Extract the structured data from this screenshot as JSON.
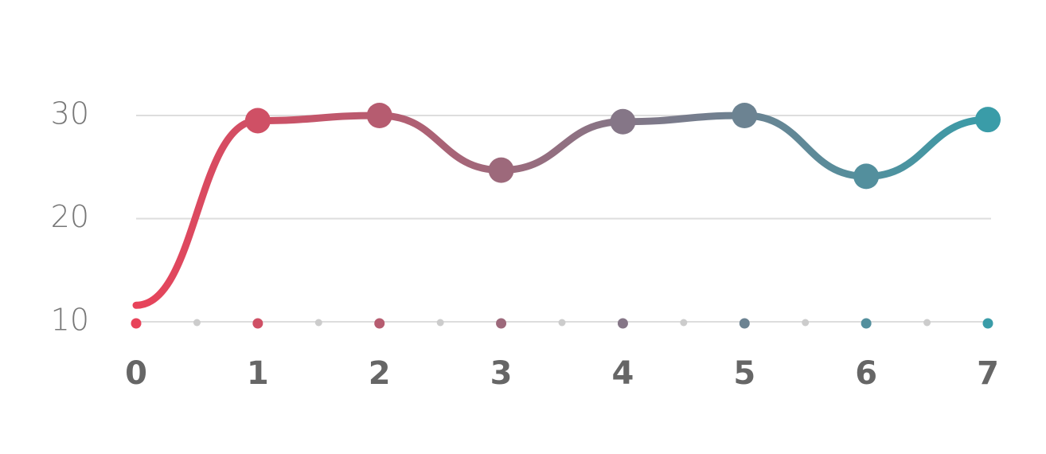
{
  "chart_data": {
    "type": "line",
    "x": [
      0,
      1,
      2,
      3,
      4,
      5,
      6,
      7
    ],
    "xlim": [
      0,
      7
    ],
    "xticks": [
      0,
      1,
      2,
      3,
      4,
      5,
      6,
      7
    ],
    "values": [
      11.6,
      29.5,
      30,
      24.7,
      29.4,
      30,
      24.1,
      29.6
    ],
    "ylim": [
      10,
      30
    ],
    "yticks": [
      10,
      20,
      30
    ],
    "grid": true,
    "gradient": [
      "#e8435a",
      "#3a9ca8"
    ]
  }
}
